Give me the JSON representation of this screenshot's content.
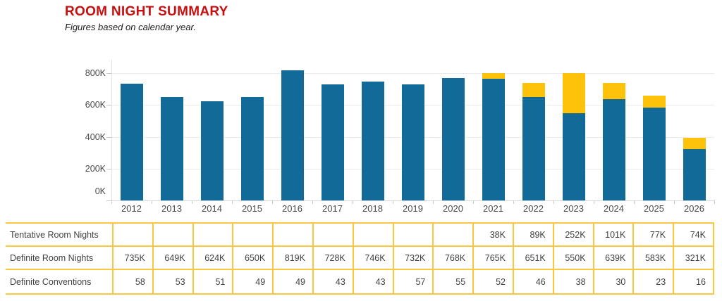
{
  "header": {
    "title": "ROOM NIGHT SUMMARY",
    "subtitle": "Figures based on calendar year."
  },
  "colors": {
    "title_red": "#C80F10",
    "definite_blue": "#116A98",
    "tentative_gold": "#FFC20A",
    "table_border_gold": "#FBC740",
    "gridline_gray": "#EBEBEB",
    "axis_text_gray": "#4A4A4A"
  },
  "chart_data": {
    "type": "bar",
    "stacked": true,
    "title": "ROOM NIGHT SUMMARY",
    "subtitle": "Figures based on calendar year.",
    "xlabel": "",
    "ylabel": "",
    "unit": "thousands of room nights",
    "ylim": [
      0,
      885
    ],
    "grid": true,
    "legend_position": "none",
    "categories": [
      "2012",
      "2013",
      "2014",
      "2015",
      "2016",
      "2017",
      "2018",
      "2019",
      "2020",
      "2021",
      "2022",
      "2023",
      "2024",
      "2025",
      "2026"
    ],
    "yticks": [
      {
        "value": 0,
        "label": "0K"
      },
      {
        "value": 200,
        "label": "200K"
      },
      {
        "value": 400,
        "label": "400K"
      },
      {
        "value": 600,
        "label": "600K"
      },
      {
        "value": 800,
        "label": "800K"
      }
    ],
    "series": [
      {
        "name": "Definite Room Nights",
        "color_key": "definite_blue",
        "values": [
          735,
          649,
          624,
          650,
          819,
          728,
          746,
          732,
          768,
          765,
          651,
          550,
          639,
          583,
          321
        ]
      },
      {
        "name": "Tentative Room Nights",
        "color_key": "tentative_gold",
        "values": [
          0,
          0,
          0,
          0,
          0,
          0,
          0,
          0,
          0,
          38,
          89,
          252,
          101,
          77,
          74
        ]
      }
    ]
  },
  "table": {
    "rows": [
      {
        "label": "Tentative Room Nights",
        "values": [
          "",
          "",
          "",
          "",
          "",
          "",
          "",
          "",
          "",
          "38K",
          "89K",
          "252K",
          "101K",
          "77K",
          "74K"
        ]
      },
      {
        "label": "Definite Room Nights",
        "values": [
          "735K",
          "649K",
          "624K",
          "650K",
          "819K",
          "728K",
          "746K",
          "732K",
          "768K",
          "765K",
          "651K",
          "550K",
          "639K",
          "583K",
          "321K"
        ]
      },
      {
        "label": "Definite Conventions",
        "values": [
          "58",
          "53",
          "51",
          "49",
          "49",
          "43",
          "43",
          "57",
          "55",
          "52",
          "46",
          "38",
          "30",
          "23",
          "16"
        ]
      }
    ]
  }
}
